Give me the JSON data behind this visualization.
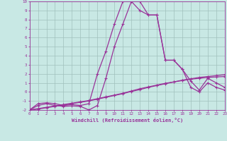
{
  "background_color": "#c8e8e4",
  "grid_color": "#a0c0bc",
  "line_color": "#993399",
  "xlabel": "Windchill (Refroidissement éolien,°C)",
  "xlim": [
    0,
    23
  ],
  "ylim": [
    -2,
    10
  ],
  "xticks": [
    0,
    1,
    2,
    3,
    4,
    5,
    6,
    7,
    8,
    9,
    10,
    11,
    12,
    13,
    14,
    15,
    16,
    17,
    18,
    19,
    20,
    21,
    22,
    23
  ],
  "yticks": [
    -2,
    -1,
    0,
    1,
    2,
    3,
    4,
    5,
    6,
    7,
    8,
    9,
    10
  ],
  "line1_x": [
    0,
    1,
    2,
    3,
    4,
    5,
    6,
    7,
    8,
    9,
    10,
    11,
    12,
    13,
    14,
    15,
    16,
    17,
    18,
    19,
    20,
    21,
    22,
    23
  ],
  "line1_y": [
    -2.0,
    -1.85,
    -1.7,
    -1.55,
    -1.4,
    -1.25,
    -1.1,
    -0.95,
    -0.75,
    -0.55,
    -0.35,
    -0.15,
    0.1,
    0.35,
    0.55,
    0.75,
    0.95,
    1.1,
    1.25,
    1.4,
    1.5,
    1.6,
    1.65,
    1.7
  ],
  "line2_x": [
    0,
    1,
    2,
    3,
    4,
    5,
    6,
    7,
    8,
    9,
    10,
    11,
    12,
    13,
    14,
    15,
    16,
    17,
    18,
    19,
    20,
    21,
    22,
    23
  ],
  "line2_y": [
    -2.0,
    -1.9,
    -1.75,
    -1.6,
    -1.45,
    -1.3,
    -1.15,
    -1.0,
    -0.8,
    -0.6,
    -0.4,
    -0.2,
    0.05,
    0.25,
    0.5,
    0.7,
    0.9,
    1.1,
    1.3,
    1.45,
    1.6,
    1.7,
    1.8,
    1.9
  ],
  "line3_x": [
    0,
    1,
    2,
    3,
    4,
    5,
    6,
    7,
    8,
    9,
    10,
    11,
    12,
    13,
    14,
    15,
    16,
    17,
    18,
    19,
    20,
    21,
    22,
    23
  ],
  "line3_y": [
    -2.0,
    -1.3,
    -1.2,
    -1.3,
    -1.5,
    -1.4,
    -1.5,
    -1.3,
    2.0,
    4.5,
    7.5,
    10.0,
    10.0,
    9.0,
    8.5,
    8.5,
    3.5,
    3.5,
    2.5,
    1.2,
    0.2,
    1.5,
    1.0,
    0.5
  ],
  "line4_x": [
    0,
    1,
    2,
    3,
    4,
    5,
    6,
    7,
    8,
    9,
    10,
    11,
    12,
    13,
    14,
    15,
    16,
    17,
    18,
    19,
    20,
    21,
    22,
    23
  ],
  "line4_y": [
    -2.0,
    -1.5,
    -1.3,
    -1.5,
    -1.6,
    -1.55,
    -1.6,
    -2.0,
    -1.5,
    1.5,
    5.0,
    7.5,
    10.0,
    10.0,
    8.5,
    8.5,
    3.5,
    3.5,
    2.5,
    0.5,
    0.0,
    1.0,
    0.5,
    0.2
  ]
}
